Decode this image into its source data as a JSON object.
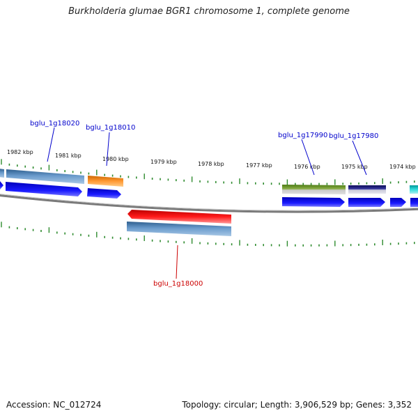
{
  "title": "Burkholderia glumae BGR1 chromosome 1, complete genome",
  "footer": {
    "accession": "Accession: NC_012724",
    "summary": "Topology: circular; Length: 3,906,529 bp; Genes: 3,352"
  },
  "scale_labels": [
    "1982 kbp",
    "1981 kbp",
    "1980 kbp",
    "1979 kbp",
    "1978 kbp",
    "1977 kbp",
    "1976 kbp",
    "1975 kbp",
    "1974 kbp"
  ],
  "gene_labels": {
    "g18020": "bglu_1g18020",
    "g18010": "bglu_1g18010",
    "g18000": "bglu_1g18000",
    "g17990": "bglu_1g17990",
    "g17980": "bglu_1g17980"
  },
  "colors": {
    "label_blue": "#0000cc",
    "label_red": "#cc0000",
    "tick_green": "#2e8b2e",
    "backbone": "#888888",
    "cds_blue": "#0000ee",
    "steel": "#4f82b4",
    "orange": "#ff8c1a",
    "red": "#ee0000",
    "olive": "#6b8e23",
    "navy": "#191970",
    "cyan": "#00cccc"
  }
}
